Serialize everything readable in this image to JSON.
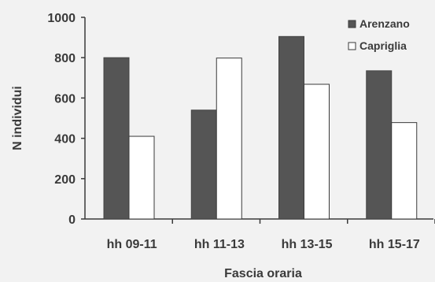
{
  "chart_data": {
    "type": "bar",
    "title": "",
    "xlabel": "Fascia oraria",
    "ylabel": "N individui",
    "categories": [
      "hh 09-11",
      "hh 11-13",
      "hh 13-15",
      "hh 15-17"
    ],
    "series": [
      {
        "name": "Arenzano",
        "values": [
          800,
          540,
          905,
          735
        ],
        "color": "#555555"
      },
      {
        "name": "Capriglia",
        "values": [
          410,
          798,
          668,
          478
        ],
        "color": "#ffffff"
      }
    ],
    "ylim": [
      0,
      1000
    ],
    "yticks": [
      0,
      200,
      400,
      600,
      800,
      1000
    ],
    "grid": false,
    "legend_position": "top-right"
  }
}
